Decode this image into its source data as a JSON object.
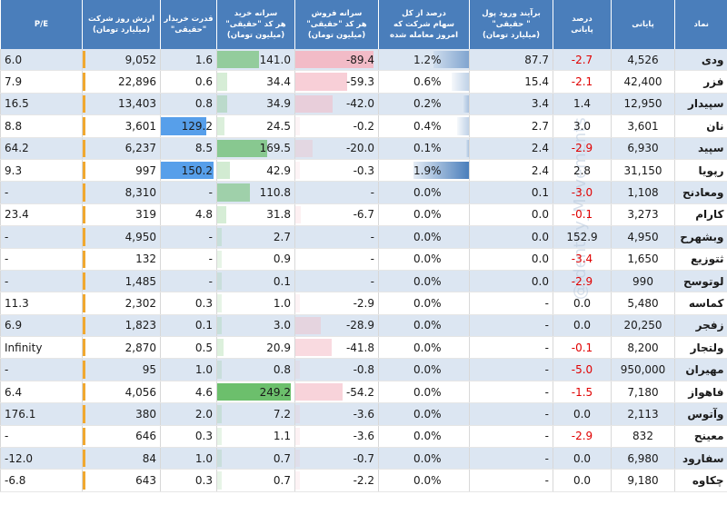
{
  "headers": {
    "symbol": [
      "نماد"
    ],
    "last": [
      "پایانی"
    ],
    "pct": [
      "درصد",
      "پایانی"
    ],
    "inflow": [
      "برآیند ورود پول",
      "\" حقیقی\"",
      "(میلیارد تومان)"
    ],
    "share": [
      "درصد از کل",
      "سهام شرکت که",
      "امروز معامله شده"
    ],
    "sell": [
      "سرانه فروش",
      "هر کد \"حقیقی\"",
      "(میلیون تومان)"
    ],
    "buy": [
      "سرانه خرید",
      "هر کد \"حقیقی\"",
      "(میلیون تومان)"
    ],
    "power": [
      "قدرت خریدار",
      "\"حقیقی\""
    ],
    "value": [
      "ارزش روز شرکت",
      "(میلیارد تومان)"
    ],
    "pe": [
      "P/E"
    ]
  },
  "watermark": "@Identity_Movements",
  "colors": {
    "header_bg": "#4a7ebb",
    "row_alt": "#dce6f2",
    "negative": "#e00000",
    "buy_bar": "#5cb85c",
    "sell_bar": "#f4b6c2",
    "share_bar": "#4a7ebb",
    "power_bar": "#3a8ee6",
    "value_bar": "#f0a830"
  },
  "rows": [
    {
      "symbol": "ودی",
      "last": "4,526",
      "pct": "-2.7",
      "neg": true,
      "inflow": "87.7",
      "share": "1.2%",
      "share_v": 1.2,
      "sell": "-89.4",
      "sell_v": 89.4,
      "buy": "141.0",
      "buy_v": 141.0,
      "power": "1.6",
      "power_v": 1.6,
      "value": "9,052",
      "value_v": 9052,
      "pe": "6.0"
    },
    {
      "symbol": "فزر",
      "last": "42,400",
      "pct": "-2.1",
      "neg": true,
      "inflow": "15.4",
      "share": "0.6%",
      "share_v": 0.6,
      "sell": "-59.3",
      "sell_v": 59.3,
      "buy": "34.4",
      "buy_v": 34.4,
      "power": "0.6",
      "power_v": 0.6,
      "value": "22,896",
      "value_v": 22896,
      "pe": "7.9"
    },
    {
      "symbol": "سپیدار",
      "last": "12,950",
      "pct": "1.4",
      "neg": false,
      "inflow": "3.4",
      "share": "0.2%",
      "share_v": 0.2,
      "sell": "-42.0",
      "sell_v": 42.0,
      "buy": "34.9",
      "buy_v": 34.9,
      "power": "0.8",
      "power_v": 0.8,
      "value": "13,403",
      "value_v": 13403,
      "pe": "16.5"
    },
    {
      "symbol": "نان",
      "last": "3,601",
      "pct": "3.0",
      "neg": false,
      "inflow": "2.7",
      "share": "0.4%",
      "share_v": 0.4,
      "sell": "-0.2",
      "sell_v": 0.2,
      "buy": "24.5",
      "buy_v": 24.5,
      "power": "129.2",
      "power_v": 129.2,
      "value": "3,601",
      "value_v": 3601,
      "pe": "8.8"
    },
    {
      "symbol": "سپید",
      "last": "6,930",
      "pct": "-2.9",
      "neg": true,
      "inflow": "2.4",
      "share": "0.1%",
      "share_v": 0.1,
      "sell": "-20.0",
      "sell_v": 20.0,
      "buy": "169.5",
      "buy_v": 169.5,
      "power": "8.5",
      "power_v": 8.5,
      "value": "6,237",
      "value_v": 6237,
      "pe": "64.2"
    },
    {
      "symbol": "رپویا",
      "last": "31,150",
      "pct": "2.8",
      "neg": false,
      "inflow": "2.4",
      "share": "1.9%",
      "share_v": 1.9,
      "sell": "-0.3",
      "sell_v": 0.3,
      "buy": "42.9",
      "buy_v": 42.9,
      "power": "150.2",
      "power_v": 150.2,
      "value": "997",
      "value_v": 997,
      "pe": "9.3"
    },
    {
      "symbol": "ومعادنح",
      "last": "1,108",
      "pct": "-3.0",
      "neg": true,
      "inflow": "0.1",
      "share": "0.0%",
      "share_v": 0,
      "sell": "-",
      "sell_v": 0,
      "buy": "110.8",
      "buy_v": 110.8,
      "power": "-",
      "power_v": 0,
      "value": "8,310",
      "value_v": 8310,
      "pe": "-"
    },
    {
      "symbol": "کارام",
      "last": "3,273",
      "pct": "-0.1",
      "neg": true,
      "inflow": "0.0",
      "share": "0.0%",
      "share_v": 0,
      "sell": "-6.7",
      "sell_v": 6.7,
      "buy": "31.8",
      "buy_v": 31.8,
      "power": "4.8",
      "power_v": 4.8,
      "value": "319",
      "value_v": 319,
      "pe": "23.4"
    },
    {
      "symbol": "وبشهرح",
      "last": "4,950",
      "pct": "152.9",
      "neg": false,
      "inflow": "0.0",
      "share": "0.0%",
      "share_v": 0,
      "sell": "-",
      "sell_v": 0,
      "buy": "2.7",
      "buy_v": 2.7,
      "power": "-",
      "power_v": 0,
      "value": "4,950",
      "value_v": 4950,
      "pe": "-"
    },
    {
      "symbol": "ثتوزیع",
      "last": "1,650",
      "pct": "-3.4",
      "neg": true,
      "inflow": "0.0",
      "share": "0.0%",
      "share_v": 0,
      "sell": "-",
      "sell_v": 0,
      "buy": "0.9",
      "buy_v": 0.9,
      "power": "-",
      "power_v": 0,
      "value": "132",
      "value_v": 132,
      "pe": "-"
    },
    {
      "symbol": "لوتوسح",
      "last": "990",
      "pct": "-2.9",
      "neg": true,
      "inflow": "0.0",
      "share": "0.0%",
      "share_v": 0,
      "sell": "-",
      "sell_v": 0,
      "buy": "0.1",
      "buy_v": 0.1,
      "power": "-",
      "power_v": 0,
      "value": "1,485",
      "value_v": 1485,
      "pe": "-"
    },
    {
      "symbol": "کماسه",
      "last": "5,480",
      "pct": "0.0",
      "neg": false,
      "inflow": "-",
      "share": "0.0%",
      "share_v": 0,
      "sell": "-2.9",
      "sell_v": 2.9,
      "buy": "1.0",
      "buy_v": 1.0,
      "power": "0.3",
      "power_v": 0.3,
      "value": "2,302",
      "value_v": 2302,
      "pe": "11.3"
    },
    {
      "symbol": "زفجر",
      "last": "20,250",
      "pct": "0.0",
      "neg": false,
      "inflow": "-",
      "share": "0.0%",
      "share_v": 0,
      "sell": "-28.9",
      "sell_v": 28.9,
      "buy": "3.0",
      "buy_v": 3.0,
      "power": "0.1",
      "power_v": 0.1,
      "value": "1,823",
      "value_v": 1823,
      "pe": "6.9"
    },
    {
      "symbol": "ولتجار",
      "last": "8,200",
      "pct": "-0.1",
      "neg": true,
      "inflow": "-",
      "share": "0.0%",
      "share_v": 0,
      "sell": "-41.8",
      "sell_v": 41.8,
      "buy": "20.9",
      "buy_v": 20.9,
      "power": "0.5",
      "power_v": 0.5,
      "value": "2,870",
      "value_v": 2870,
      "pe": "Infinity"
    },
    {
      "symbol": "مهیران",
      "last": "950,000",
      "pct": "-5.0",
      "neg": true,
      "inflow": "-",
      "share": "0.0%",
      "share_v": 0,
      "sell": "-0.8",
      "sell_v": 0.8,
      "buy": "0.8",
      "buy_v": 0.8,
      "power": "1.0",
      "power_v": 1.0,
      "value": "95",
      "value_v": 95,
      "pe": "-"
    },
    {
      "symbol": "فاهواز",
      "last": "7,180",
      "pct": "-1.5",
      "neg": true,
      "inflow": "-",
      "share": "0.0%",
      "share_v": 0,
      "sell": "-54.2",
      "sell_v": 54.2,
      "buy": "249.2",
      "buy_v": 249.2,
      "power": "4.6",
      "power_v": 4.6,
      "value": "4,056",
      "value_v": 4056,
      "pe": "6.4"
    },
    {
      "symbol": "وآتوس",
      "last": "2,113",
      "pct": "0.0",
      "neg": false,
      "inflow": "-",
      "share": "0.0%",
      "share_v": 0,
      "sell": "-3.6",
      "sell_v": 3.6,
      "buy": "7.2",
      "buy_v": 7.2,
      "power": "2.0",
      "power_v": 2.0,
      "value": "380",
      "value_v": 380,
      "pe": "176.1"
    },
    {
      "symbol": "معینح",
      "last": "832",
      "pct": "-2.9",
      "neg": true,
      "inflow": "-",
      "share": "0.0%",
      "share_v": 0,
      "sell": "-3.6",
      "sell_v": 3.6,
      "buy": "1.1",
      "buy_v": 1.1,
      "power": "0.3",
      "power_v": 0.3,
      "value": "646",
      "value_v": 646,
      "pe": "-"
    },
    {
      "symbol": "سفارود",
      "last": "6,980",
      "pct": "0.0",
      "neg": false,
      "inflow": "-",
      "share": "0.0%",
      "share_v": 0,
      "sell": "-0.7",
      "sell_v": 0.7,
      "buy": "0.7",
      "buy_v": 0.7,
      "power": "1.0",
      "power_v": 1.0,
      "value": "84",
      "value_v": 84,
      "pe": "-12.0"
    },
    {
      "symbol": "چکاوه",
      "last": "9,180",
      "pct": "0.0",
      "neg": false,
      "inflow": "-",
      "share": "0.0%",
      "share_v": 0,
      "sell": "-2.2",
      "sell_v": 2.2,
      "buy": "0.7",
      "buy_v": 0.7,
      "power": "0.3",
      "power_v": 0.3,
      "value": "643",
      "value_v": 643,
      "pe": "-6.8"
    }
  ]
}
